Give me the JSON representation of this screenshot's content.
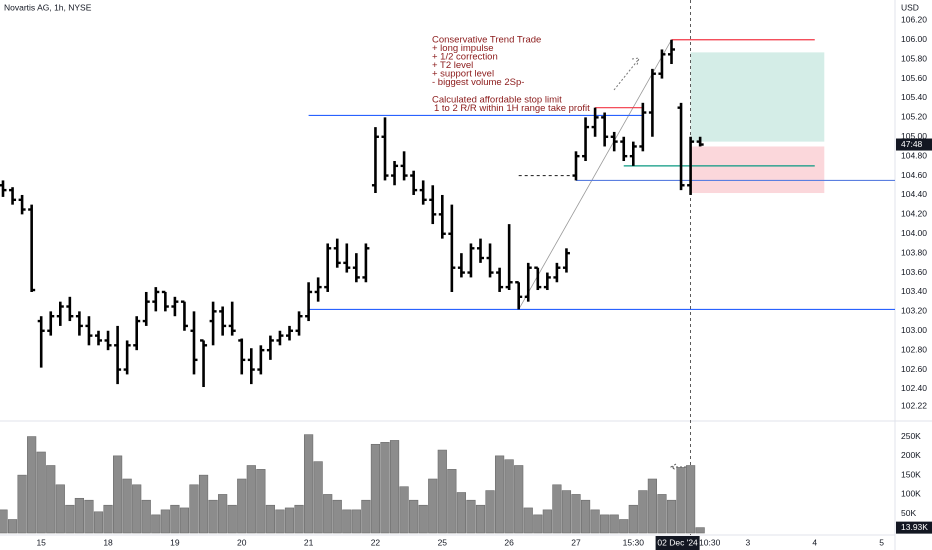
{
  "chart_data": [
    {
      "type": "ohlc",
      "title": "Novartis AG, 1h, NYSE",
      "currency": "USD",
      "categories": [
        null,
        null,
        null,
        null,
        "15",
        null,
        null,
        null,
        null,
        null,
        null,
        "18",
        null,
        null,
        null,
        null,
        null,
        null,
        "19",
        null,
        null,
        null,
        null,
        null,
        null,
        "20",
        null,
        null,
        null,
        null,
        null,
        null,
        "21",
        null,
        null,
        null,
        null,
        null,
        null,
        "22",
        null,
        null,
        null,
        null,
        null,
        null,
        "25",
        null,
        null,
        null,
        null,
        null,
        null,
        "26",
        null,
        null,
        null,
        null,
        null,
        null,
        "27",
        null,
        null,
        null,
        null,
        null,
        "15:30",
        null,
        null,
        null,
        null,
        null,
        null,
        null,
        "10:30",
        null,
        null,
        null,
        "3",
        null,
        null,
        null,
        null,
        null,
        null,
        "4",
        null,
        null,
        null,
        null,
        null,
        null,
        "5"
      ],
      "open": [
        104.5,
        104.45,
        104.35,
        104.25,
        103.1,
        103.0,
        103.15,
        103.25,
        103.15,
        103.05,
        102.95,
        102.9,
        102.85,
        102.6,
        102.85,
        103.1,
        103.3,
        103.4,
        103.25,
        103.3,
        103.0,
        102.9,
        103.1,
        103.2,
        103.05,
        102.9,
        102.7,
        102.6,
        102.8,
        102.9,
        102.95,
        103.0,
        103.15,
        103.4,
        103.45,
        103.85,
        103.7,
        103.65,
        103.55,
        104.5,
        105.0,
        104.6,
        104.7,
        104.6,
        104.45,
        104.35,
        104.2,
        104.0,
        103.65,
        103.6,
        103.85,
        103.75,
        103.6,
        103.45,
        103.5,
        103.35,
        103.65,
        103.45,
        103.55,
        103.65,
        104.6,
        104.8,
        105.1,
        105.2,
        105.0,
        104.95,
        104.8,
        104.9,
        105.25,
        105.65,
        105.85,
        105.3,
        104.5,
        104.95,
        null,
        null,
        null,
        null,
        null,
        null,
        null,
        null,
        null,
        null,
        null,
        null,
        null,
        null,
        null,
        null,
        null,
        null,
        null
      ],
      "high": [
        104.55,
        104.48,
        104.4,
        104.3,
        103.15,
        103.2,
        103.3,
        103.35,
        103.2,
        103.15,
        103.0,
        103.0,
        103.05,
        102.9,
        103.15,
        103.4,
        103.45,
        103.4,
        103.35,
        103.3,
        103.2,
        102.9,
        103.3,
        103.25,
        103.3,
        102.92,
        102.82,
        102.85,
        102.95,
        103.0,
        103.05,
        103.2,
        103.5,
        103.55,
        103.9,
        103.95,
        103.9,
        103.8,
        103.9,
        105.1,
        105.2,
        104.75,
        104.85,
        104.65,
        104.55,
        104.5,
        104.4,
        104.3,
        103.8,
        103.9,
        103.95,
        103.9,
        103.65,
        104.1,
        103.5,
        103.7,
        103.65,
        103.6,
        103.7,
        103.85,
        104.85,
        105.2,
        105.3,
        105.25,
        105.05,
        105.0,
        104.95,
        105.35,
        105.7,
        105.9,
        106.0,
        105.35,
        105.0,
        105.0,
        null,
        null,
        null,
        null,
        null,
        null,
        null,
        null,
        null,
        null,
        null,
        null,
        null,
        null,
        null,
        null,
        null,
        null,
        null
      ],
      "low": [
        104.38,
        104.3,
        104.2,
        103.4,
        102.62,
        102.95,
        103.05,
        103.1,
        102.95,
        102.85,
        102.85,
        102.8,
        102.45,
        102.55,
        102.8,
        103.05,
        103.2,
        103.2,
        103.15,
        103.0,
        102.55,
        102.42,
        102.85,
        102.95,
        102.95,
        102.55,
        102.45,
        102.55,
        102.7,
        102.85,
        102.9,
        102.95,
        103.1,
        103.3,
        103.4,
        103.65,
        103.6,
        103.5,
        103.5,
        104.42,
        104.55,
        104.5,
        104.55,
        104.4,
        104.3,
        104.1,
        103.95,
        103.4,
        103.55,
        103.55,
        103.7,
        103.55,
        103.4,
        103.42,
        103.22,
        103.3,
        103.42,
        103.42,
        103.5,
        103.6,
        104.55,
        104.75,
        105.0,
        104.9,
        104.85,
        104.75,
        104.7,
        104.85,
        105.0,
        105.6,
        105.75,
        104.45,
        104.4,
        104.9,
        null,
        null,
        null,
        null,
        null,
        null,
        null,
        null,
        null,
        null,
        null,
        null,
        null,
        null,
        null,
        null,
        null,
        null,
        null
      ],
      "close": [
        104.45,
        104.35,
        104.25,
        103.42,
        103.0,
        103.15,
        103.25,
        103.15,
        103.05,
        102.95,
        102.9,
        102.85,
        102.6,
        102.85,
        103.1,
        103.3,
        103.4,
        103.25,
        103.3,
        103.05,
        102.7,
        102.85,
        103.2,
        103.05,
        103.0,
        102.7,
        102.6,
        102.8,
        102.9,
        102.95,
        103.0,
        103.15,
        103.4,
        103.45,
        103.85,
        103.7,
        103.65,
        103.55,
        103.85,
        105.0,
        104.6,
        104.7,
        104.6,
        104.45,
        104.35,
        104.2,
        104.0,
        103.65,
        103.6,
        103.85,
        103.75,
        103.6,
        103.45,
        103.5,
        103.35,
        103.65,
        103.45,
        103.55,
        103.65,
        103.8,
        104.8,
        105.1,
        105.2,
        105.0,
        104.95,
        104.8,
        104.9,
        105.25,
        105.65,
        105.85,
        105.9,
        104.5,
        104.95,
        104.92,
        null,
        null,
        null,
        null,
        null,
        null,
        null,
        null,
        null,
        null,
        null,
        null,
        null,
        null,
        null,
        null,
        null,
        null,
        null
      ],
      "color": "#000000",
      "ylim": [
        102.08,
        106.41
      ],
      "yticks": [
        {
          "value": 106.2,
          "label": "106.20"
        },
        {
          "value": 106.0,
          "label": "106.00"
        },
        {
          "value": 105.8,
          "label": "105.80"
        },
        {
          "value": 105.6,
          "label": "105.60"
        },
        {
          "value": 105.4,
          "label": "105.40"
        },
        {
          "value": 105.2,
          "label": "105.20"
        },
        {
          "value": 105.0,
          "label": "105.00"
        },
        {
          "value": 104.8,
          "label": "104.80"
        },
        {
          "value": 104.6,
          "label": "104.60"
        },
        {
          "value": 104.4,
          "label": "104.40"
        },
        {
          "value": 104.2,
          "label": "104.20"
        },
        {
          "value": 104.0,
          "label": "104.00"
        },
        {
          "value": 103.8,
          "label": "103.80"
        },
        {
          "value": 103.6,
          "label": "103.60"
        },
        {
          "value": 103.4,
          "label": "103.40"
        },
        {
          "value": 103.2,
          "label": "103.20"
        },
        {
          "value": 103.0,
          "label": "103.00"
        },
        {
          "value": 102.8,
          "label": "102.80"
        },
        {
          "value": 102.6,
          "label": "102.60"
        },
        {
          "value": 102.4,
          "label": "102.40"
        },
        {
          "value": 102.22,
          "label": "102.22"
        }
      ],
      "countdown_label": "47:48",
      "crosshair": {
        "index": 72,
        "label": "02 Dec '24"
      },
      "levels": [
        {
          "price": 105.22,
          "from": 32,
          "to": 67,
          "color": "#2962ff",
          "dash": false
        },
        {
          "price": 103.22,
          "from": 32,
          "to": 94,
          "color": "#2962ff",
          "dash": false
        },
        {
          "price": 104.55,
          "from": 60,
          "to": 94,
          "color": "#5b7fe0",
          "dash": false
        },
        {
          "price": 104.6,
          "from": 54,
          "to": 60,
          "color": "#333333",
          "dash": true
        },
        {
          "price": 106.0,
          "from": 70,
          "to": 85,
          "color": "#f23645",
          "dash": false
        },
        {
          "price": 105.3,
          "from": 62,
          "to": 67,
          "color": "#f23645",
          "dash": false
        },
        {
          "price": 104.7,
          "from": 65,
          "to": 85,
          "color": "#089981",
          "dash": false
        }
      ],
      "boxes": [
        {
          "top": 105.87,
          "bottom": 104.95,
          "from": 72,
          "to": 86,
          "color": "#d4ede7"
        },
        {
          "top": 104.9,
          "bottom": 104.42,
          "from": 72,
          "to": 86,
          "color": "#fbd7db"
        }
      ],
      "trendline": {
        "from": 54,
        "from_price": 103.22,
        "to": 70,
        "to_price": 106.0,
        "color": "#999999"
      },
      "annotations": [
        "Conservative Trend Trade",
        "+ long impulse",
        "+ 1/2 correction",
        "+ T2 level",
        "+ support level",
        "- biggest volume 2Sp-",
        "Calculated affordable stop limit",
        "1 to 2 R/R within 1H range take profit"
      ]
    },
    {
      "type": "bar",
      "values": [
        60000,
        35000,
        150000,
        250000,
        210000,
        175000,
        125000,
        72000,
        90000,
        85000,
        55000,
        72000,
        200000,
        140000,
        125000,
        85000,
        47000,
        60000,
        72000,
        65000,
        125000,
        150000,
        85000,
        100000,
        72000,
        140000,
        175000,
        165000,
        72000,
        60000,
        65000,
        72000,
        255000,
        185000,
        100000,
        85000,
        60000,
        60000,
        85000,
        230000,
        235000,
        240000,
        120000,
        85000,
        72000,
        140000,
        215000,
        165000,
        105000,
        85000,
        72000,
        110000,
        200000,
        190000,
        175000,
        65000,
        47000,
        60000,
        125000,
        110000,
        100000,
        85000,
        60000,
        47000,
        47000,
        35000,
        72000,
        110000,
        140000,
        100000,
        85000,
        170000,
        175000,
        13930,
        null,
        null,
        null,
        null,
        null,
        null,
        null,
        null,
        null,
        null,
        null,
        null,
        null,
        null,
        null,
        null,
        null,
        null,
        null
      ],
      "color": "#8c8c8c",
      "ylim": [
        0,
        280000
      ],
      "yticks": [
        {
          "value": 250000,
          "label": "250K"
        },
        {
          "value": 200000,
          "label": "200K"
        },
        {
          "value": 150000,
          "label": "150K"
        },
        {
          "value": 100000,
          "label": "100K"
        },
        {
          "value": 50000,
          "label": "50K"
        }
      ],
      "last_value_label": "13.93K"
    }
  ]
}
